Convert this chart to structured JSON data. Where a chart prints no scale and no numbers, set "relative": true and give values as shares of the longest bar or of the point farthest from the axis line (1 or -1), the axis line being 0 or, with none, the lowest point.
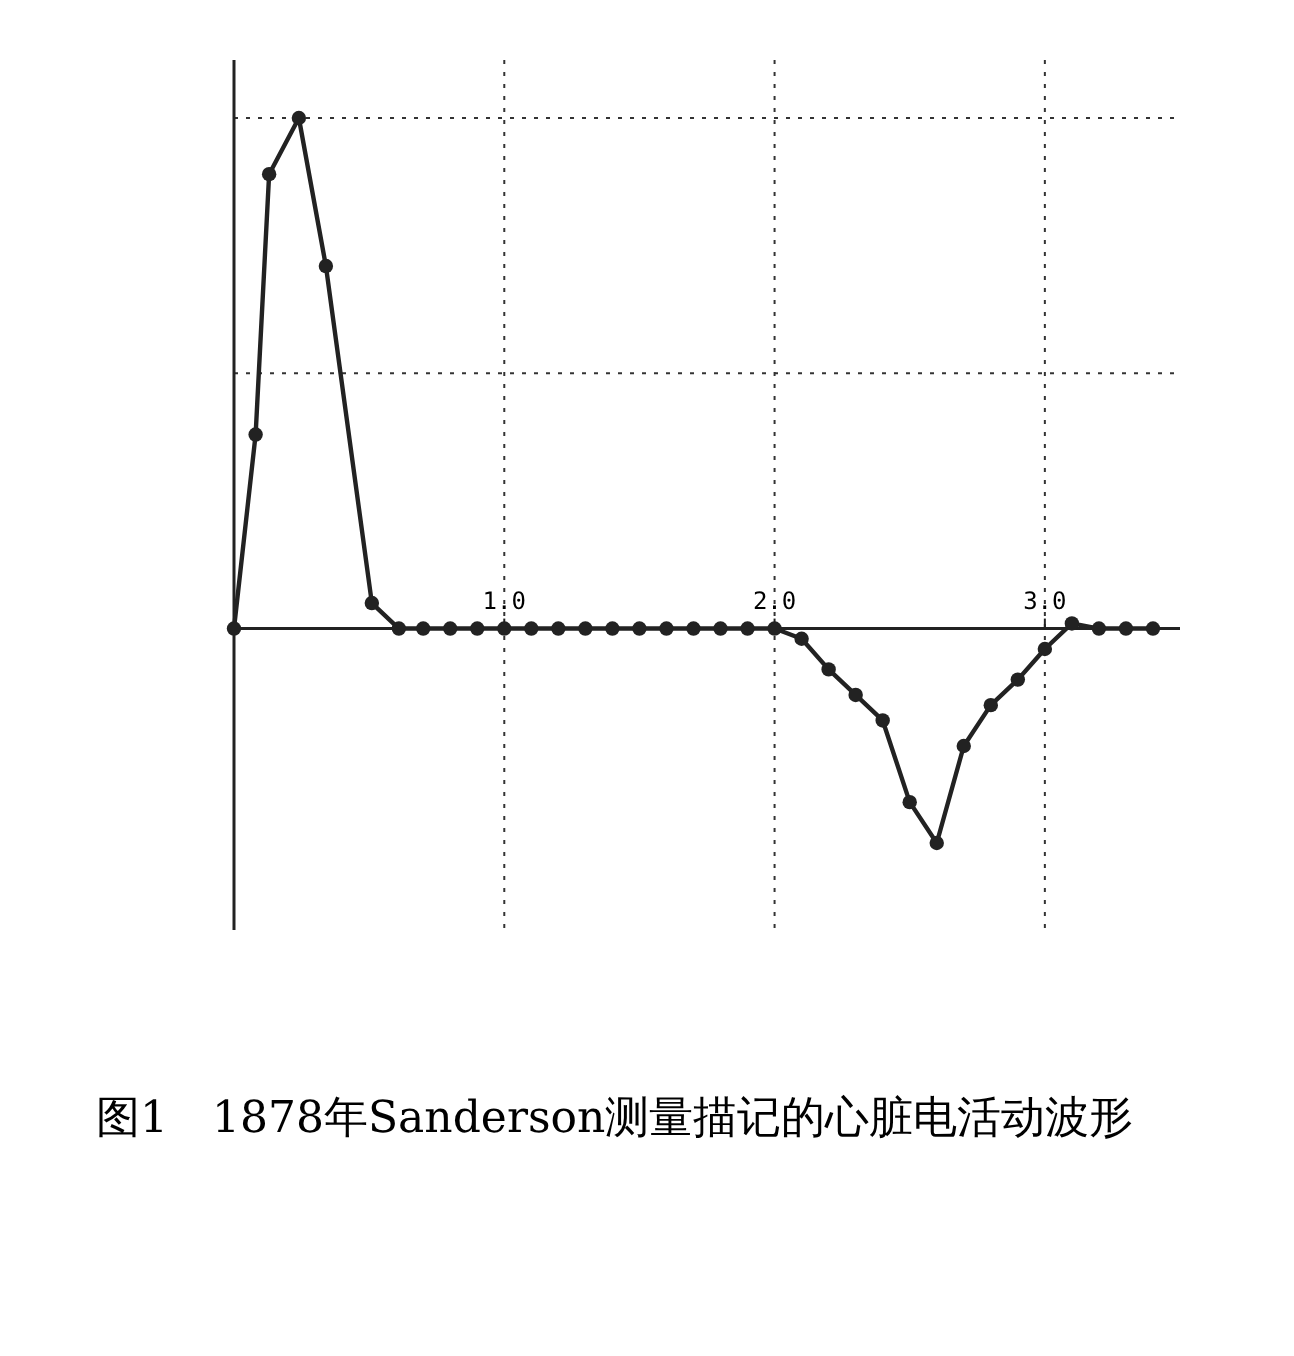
{
  "chart_data": {
    "type": "line",
    "relative": true,
    "title": "图1　1878年Sanderson测量描记的心脏电活动波形",
    "x": [
      0,
      0.08,
      0.13,
      0.24,
      0.34,
      0.51,
      0.61,
      0.7,
      0.8,
      0.9,
      1.0,
      1.1,
      1.2,
      1.3,
      1.4,
      1.5,
      1.6,
      1.7,
      1.8,
      1.9,
      2.0,
      2.1,
      2.2,
      2.3,
      2.4,
      2.5,
      2.6,
      2.7,
      2.8,
      2.9,
      3.0,
      3.1,
      3.2,
      3.3,
      3.4
    ],
    "values": [
      0,
      0.38,
      0.89,
      1.0,
      0.71,
      0.05,
      0,
      0,
      0,
      0,
      0,
      0,
      0,
      0,
      0,
      0,
      0,
      0,
      0,
      0,
      0,
      -0.02,
      -0.08,
      -0.13,
      -0.18,
      -0.34,
      -0.42,
      -0.23,
      -0.15,
      -0.1,
      -0.04,
      0.01,
      0,
      0,
      0
    ],
    "color": "#222222",
    "xlim": [
      0,
      3.5
    ],
    "xticks": [
      {
        "value": 1,
        "label": "1.0"
      },
      {
        "value": 2,
        "label": "2.0"
      },
      {
        "value": 3,
        "label": "3.0"
      }
    ],
    "grid": true,
    "marker": "circle",
    "line_style": "solid"
  }
}
